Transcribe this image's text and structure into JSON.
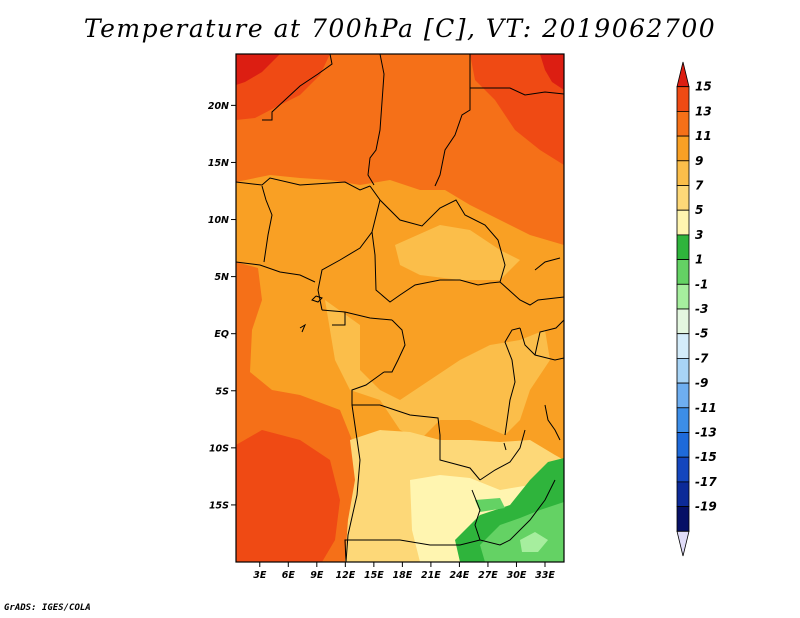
{
  "title": "Temperature at 700hPa [C], VT: 2019062700",
  "credit": "GrADS: IGES/COLA",
  "map": {
    "lat_labels": [
      "20N",
      "15N",
      "10N",
      "5N",
      "EQ",
      "5S",
      "10S",
      "15S"
    ],
    "lat_values": [
      20,
      15,
      10,
      5,
      0,
      -5,
      -10,
      -15
    ],
    "lon_labels": [
      "3E",
      "6E",
      "9E",
      "12E",
      "15E",
      "18E",
      "21E",
      "24E",
      "27E",
      "30E",
      "33E"
    ],
    "lon_values": [
      3,
      6,
      9,
      12,
      15,
      18,
      21,
      24,
      27,
      30,
      33
    ],
    "lon_range": [
      0.5,
      35
    ],
    "lat_range": [
      -20,
      24.5
    ]
  },
  "colorbar": {
    "labels": [
      "15",
      "13",
      "11",
      "9",
      "7",
      "5",
      "3",
      "1",
      "-1",
      "-3",
      "-5",
      "-7",
      "-9",
      "-11",
      "-13",
      "-15",
      "-17",
      "-19"
    ],
    "colors": [
      "#dc1e12",
      "#ef4a14",
      "#f57018",
      "#f9a024",
      "#fbbe4a",
      "#fdd878",
      "#fff5b0",
      "#2fb43c",
      "#64d264",
      "#a6ee9e",
      "#e4f7e0",
      "#d4ecfa",
      "#a8d4f6",
      "#6eaef0",
      "#3c8ee8",
      "#1e6ada",
      "#1446be",
      "#0c2a98",
      "#061066",
      "#e0dcf8"
    ]
  }
}
